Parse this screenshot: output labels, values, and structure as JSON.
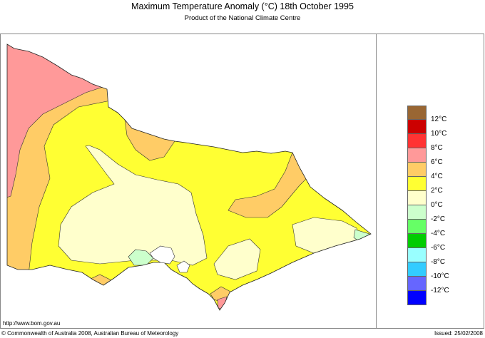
{
  "header": {
    "title": "Maximum Temperature Anomaly (°C)  18th October 1995",
    "subtitle": "Product of the National Climate Centre"
  },
  "legend": {
    "swatches": [
      "#996633",
      "#cc0000",
      "#ff3333",
      "#ff9999",
      "#ffcc66",
      "#ffff33",
      "#ffffcc",
      "#ccffcc",
      "#66ff66",
      "#00cc00",
      "#99ffff",
      "#33ccff",
      "#6666ff",
      "#0000ff"
    ],
    "labels": [
      "12°C",
      "10°C",
      "8°C",
      "6°C",
      "4°C",
      "2°C",
      "0°C",
      "-2°C",
      "-4°C",
      "-6°C",
      "-8°C",
      "-10°C",
      "-12°C"
    ]
  },
  "map": {
    "region": "Victoria",
    "colors": {
      "pink": "#ff9999",
      "orange": "#ffcc66",
      "yellow": "#ffff33",
      "pale": "#ffffcc",
      "green": "#ccffcc"
    }
  },
  "footer": {
    "url": "http://www.bom.gov.au",
    "copyright": "© Commonwealth of Australia 2008, Australian Bureau of Meteorology",
    "issued": "Issued: 25/02/2008"
  }
}
